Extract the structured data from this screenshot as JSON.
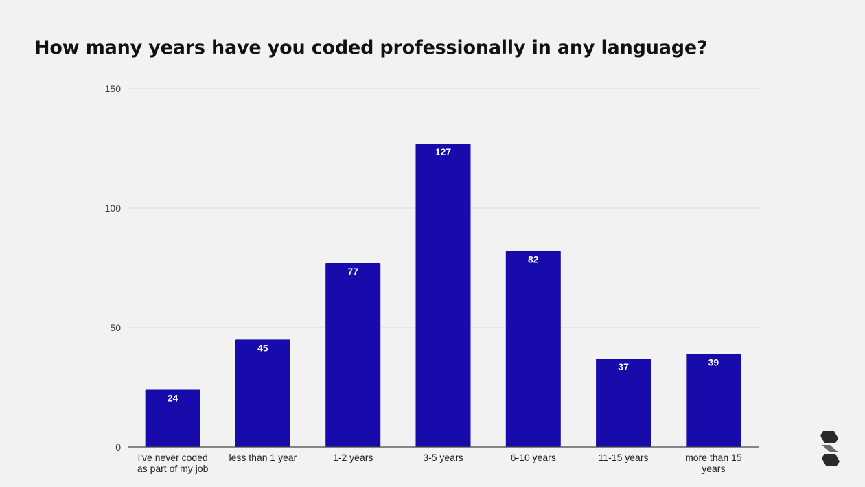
{
  "chart_data": {
    "type": "bar",
    "title": "How many years have you coded professionally in any language?",
    "categories": [
      "I've never coded as part of my job",
      "less than 1 year",
      "1-2 years",
      "3-5 years",
      "6-10 years",
      "11-15 years",
      "more than 15 years"
    ],
    "category_lines": [
      [
        "I've never coded",
        "as part of my job"
      ],
      [
        "less than 1 year"
      ],
      [
        "1-2 years"
      ],
      [
        "3-5 years"
      ],
      [
        "6-10 years"
      ],
      [
        "11-15 years"
      ],
      [
        "more than 15",
        "years"
      ]
    ],
    "values": [
      24,
      45,
      77,
      127,
      82,
      37,
      39
    ],
    "ylim": [
      0,
      150
    ],
    "yticks": [
      0,
      50,
      100,
      150
    ],
    "xlabel": "",
    "ylabel": "",
    "grid": true,
    "data_labels": "inside-top",
    "bar_color": "#170bab"
  },
  "logo": {
    "icon": "brand-logo-icon",
    "color": "#2a2a2a"
  }
}
